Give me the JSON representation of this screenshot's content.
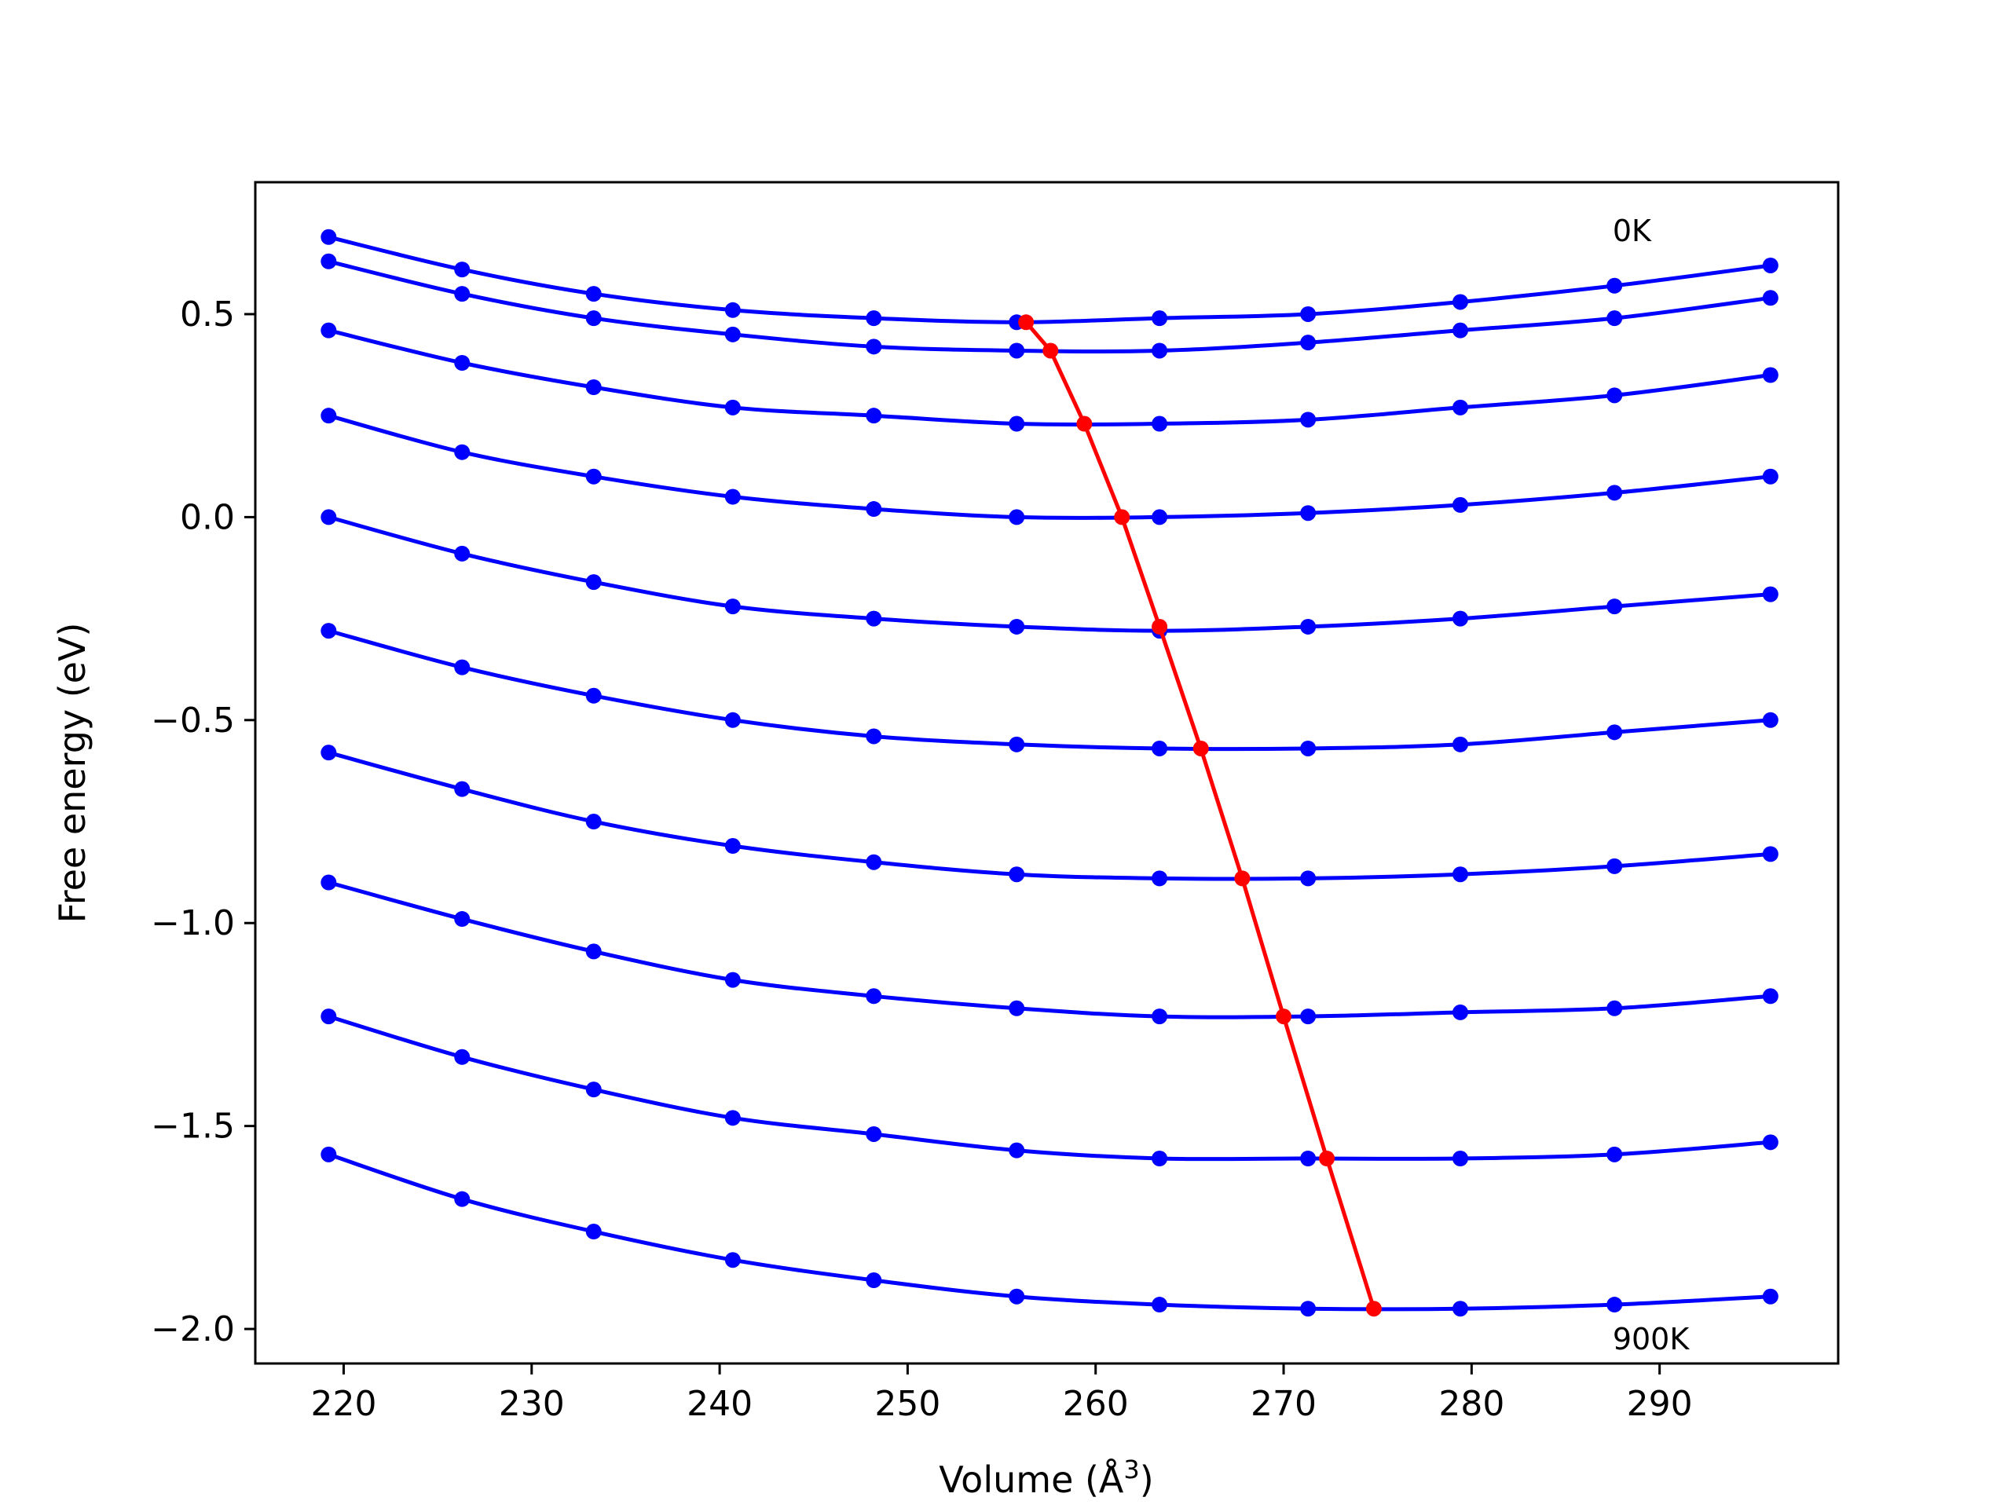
{
  "chart_data": {
    "type": "line",
    "title": "",
    "xlabel": "Volume (Å",
    "xlabel_sup": "3",
    "xlabel_close": ")",
    "ylabel": "Free energy (eV)",
    "xlim": [
      215.3,
      299.5
    ],
    "ylim": [
      -2.085,
      0.825
    ],
    "xticks": [
      220,
      230,
      240,
      250,
      260,
      270,
      280,
      290
    ],
    "yticks": [
      0.5,
      0.0,
      -0.5,
      -1.0,
      -1.5,
      -2.0
    ],
    "ytick_labels": [
      "0.5",
      "0.0",
      "−0.5",
      "−1.0",
      "−1.5",
      "−2.0"
    ],
    "grid": false,
    "legend": "none",
    "annotations": [
      {
        "text": "0K",
        "x": 287.5,
        "y": 0.68
      },
      {
        "text": "900K",
        "x": 287.5,
        "y": -2.05
      }
    ],
    "series_color": "#0000ff",
    "min_color": "#ff0000",
    "x": [
      219.2,
      226.3,
      233.3,
      240.7,
      248.2,
      255.8,
      263.4,
      271.3,
      279.4,
      287.6,
      295.9
    ],
    "series": [
      {
        "values": [
          0.69,
          0.61,
          0.55,
          0.51,
          0.49,
          0.48,
          0.49,
          0.5,
          0.53,
          0.57,
          0.62
        ]
      },
      {
        "values": [
          0.63,
          0.55,
          0.49,
          0.45,
          0.42,
          0.41,
          0.41,
          0.43,
          0.46,
          0.49,
          0.54
        ]
      },
      {
        "values": [
          0.46,
          0.38,
          0.32,
          0.27,
          0.25,
          0.23,
          0.23,
          0.24,
          0.27,
          0.3,
          0.35
        ]
      },
      {
        "values": [
          0.25,
          0.16,
          0.1,
          0.05,
          0.02,
          0.0,
          0.0,
          0.01,
          0.03,
          0.06,
          0.1
        ]
      },
      {
        "values": [
          0.0,
          -0.09,
          -0.16,
          -0.22,
          -0.25,
          -0.27,
          -0.28,
          -0.27,
          -0.25,
          -0.22,
          -0.19
        ]
      },
      {
        "values": [
          -0.28,
          -0.37,
          -0.44,
          -0.5,
          -0.54,
          -0.56,
          -0.57,
          -0.57,
          -0.56,
          -0.53,
          -0.5
        ]
      },
      {
        "values": [
          -0.58,
          -0.67,
          -0.75,
          -0.81,
          -0.85,
          -0.88,
          -0.89,
          -0.89,
          -0.88,
          -0.86,
          -0.83
        ]
      },
      {
        "values": [
          -0.9,
          -0.99,
          -1.07,
          -1.14,
          -1.18,
          -1.21,
          -1.23,
          -1.23,
          -1.22,
          -1.21,
          -1.18
        ]
      },
      {
        "values": [
          -1.23,
          -1.33,
          -1.41,
          -1.48,
          -1.52,
          -1.56,
          -1.58,
          -1.58,
          -1.58,
          -1.57,
          -1.54
        ]
      },
      {
        "values": [
          -1.57,
          -1.68,
          -1.76,
          -1.83,
          -1.88,
          -1.92,
          -1.94,
          -1.95,
          -1.95,
          -1.94,
          -1.92
        ]
      }
    ],
    "minimum_line": {
      "x": [
        256.3,
        257.6,
        259.4,
        261.4,
        263.4,
        265.6,
        267.8,
        270.0,
        272.3,
        274.8
      ],
      "y": [
        0.48,
        0.41,
        0.23,
        0.0,
        -0.27,
        -0.57,
        -0.89,
        -1.23,
        -1.58,
        -1.95
      ]
    }
  }
}
